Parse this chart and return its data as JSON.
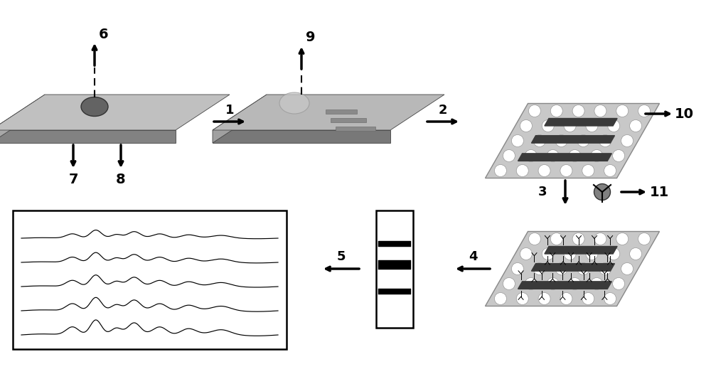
{
  "bg_color": "#ffffff",
  "plate_top_light": "#c8c8c8",
  "plate_top_dark": "#a8a8a8",
  "plate_side_color": "#787878",
  "plate_left_color": "#909090",
  "cell_color": "#606060",
  "bead_fill": "#ffffff",
  "bead_edge": "#999999",
  "bead_bg": "#c8c8c8",
  "band_dark": "#3a3a3a",
  "band_medium": "#606060",
  "arrow_lw": 2.5,
  "label_fs": 14,
  "step_fs": 13
}
